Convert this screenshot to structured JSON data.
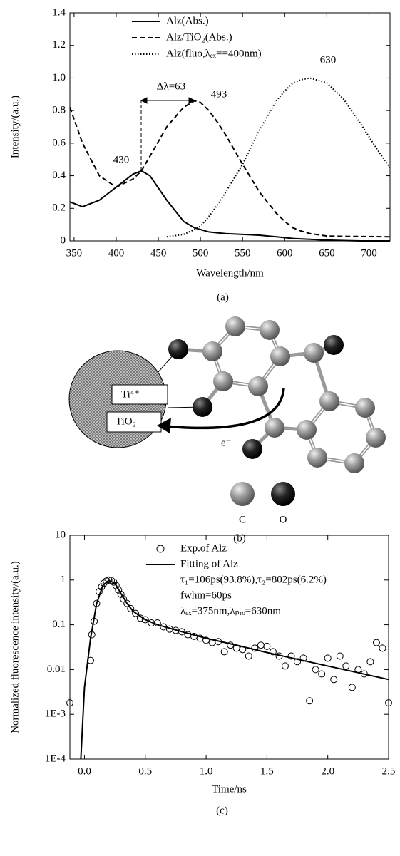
{
  "chart_data": [
    {
      "type": "line",
      "x_label": "Wavelength/nm",
      "y_label": "Intensity/(a.u.)",
      "caption": "(a)",
      "xlim": [
        345,
        725
      ],
      "ylim": [
        0,
        1.4
      ],
      "xticks": [
        350,
        400,
        450,
        500,
        550,
        600,
        650,
        700
      ],
      "yticks": [
        0,
        0.2,
        0.4,
        0.6,
        0.8,
        {
          "value": 1.0,
          "label": "1.0"
        },
        1.2,
        1.4
      ],
      "x": [
        345,
        360,
        380,
        400,
        420,
        430,
        440,
        460,
        480,
        493,
        500,
        510,
        520,
        530,
        550,
        570,
        590,
        600,
        610,
        620,
        630,
        650,
        670,
        690,
        700,
        710,
        725
      ],
      "series": [
        {
          "name": "Alz(Abs.)",
          "color": "#000",
          "style": "solid",
          "values": [
            0.24,
            0.21,
            0.25,
            0.33,
            0.41,
            0.43,
            0.4,
            0.25,
            0.12,
            0.08,
            0.07,
            0.055,
            0.05,
            0.045,
            0.04,
            0.035,
            0.025,
            0.02,
            0.015,
            0.012,
            0.01,
            0.005,
            0.002,
            0,
            0,
            0,
            0
          ]
        },
        {
          "name": "Alz/TiO₂(Abs.)",
          "color": "#000",
          "style": "dashed",
          "values": [
            0.82,
            0.6,
            0.4,
            0.33,
            0.38,
            0.43,
            0.52,
            0.7,
            0.82,
            0.86,
            0.85,
            0.8,
            0.73,
            0.65,
            0.47,
            0.3,
            0.17,
            0.12,
            0.08,
            0.06,
            0.045,
            0.03,
            0.028,
            0.027,
            0.027,
            0.026,
            0.025
          ]
        },
        {
          "name": "Alz(fluo,λₑₓ==400nm)",
          "color": "#000",
          "style": "dotted",
          "values": [
            null,
            null,
            null,
            null,
            null,
            null,
            null,
            0.025,
            0.04,
            0.07,
            0.09,
            0.15,
            0.22,
            0.3,
            0.47,
            0.68,
            0.86,
            0.92,
            0.97,
            0.99,
            1.0,
            0.97,
            0.87,
            0.72,
            0.64,
            0.56,
            0.45
          ]
        }
      ],
      "annotations": [
        "430",
        "493",
        "630",
        "Δλ=63"
      ]
    },
    {
      "type": "line",
      "x_label": "Time/ns",
      "y_label": "Normalized fluorescence intensity/(a.u.)",
      "caption": "(c)",
      "log_y": true,
      "xlim": [
        -0.12,
        2.5
      ],
      "ylim": [
        0.0001,
        10
      ],
      "xticks": [
        {
          "value": 0,
          "label": "0.0"
        },
        0.5,
        {
          "value": 1,
          "label": "1.0"
        },
        1.5,
        {
          "value": 2,
          "label": "2.0"
        },
        2.5
      ],
      "yticks": [
        10,
        1,
        0.1,
        0.01,
        {
          "value": 0.001,
          "label": "1E-3"
        },
        {
          "value": 0.0001,
          "label": "1E-4"
        }
      ],
      "series": [
        {
          "name": "Exp.of Alz",
          "color": "#000",
          "style": "markers",
          "x": [
            -0.12,
            0.05,
            0.06,
            0.08,
            0.1,
            0.12,
            0.14,
            0.16,
            0.18,
            0.2,
            0.22,
            0.24,
            0.26,
            0.28,
            0.3,
            0.32,
            0.35,
            0.38,
            0.42,
            0.46,
            0.5,
            0.55,
            0.6,
            0.65,
            0.7,
            0.75,
            0.8,
            0.85,
            0.9,
            0.95,
            1.0,
            1.05,
            1.1,
            1.15,
            1.2,
            1.25,
            1.3,
            1.35,
            1.4,
            1.45,
            1.5,
            1.55,
            1.6,
            1.65,
            1.7,
            1.75,
            1.8,
            1.85,
            1.9,
            1.95,
            2.0,
            2.05,
            2.1,
            2.15,
            2.2,
            2.25,
            2.3,
            2.35,
            2.4,
            2.45,
            2.5
          ],
          "values": [
            0.0018,
            0.016,
            0.06,
            0.12,
            0.3,
            0.55,
            0.7,
            0.85,
            0.95,
            1.0,
            0.98,
            0.9,
            0.75,
            0.6,
            0.48,
            0.38,
            0.3,
            0.23,
            0.18,
            0.14,
            0.13,
            0.11,
            0.11,
            0.09,
            0.08,
            0.075,
            0.07,
            0.06,
            0.055,
            0.05,
            0.045,
            0.04,
            0.042,
            0.025,
            0.035,
            0.03,
            0.028,
            0.02,
            0.03,
            0.035,
            0.033,
            0.025,
            0.02,
            0.012,
            0.02,
            0.015,
            0.018,
            0.002,
            0.01,
            0.008,
            0.018,
            0.006,
            0.02,
            0.012,
            0.004,
            0.01,
            0.008,
            0.015,
            0.04,
            0.03,
            0.0018
          ]
        },
        {
          "name": "Fitting of Alz",
          "color": "#000",
          "style": "solid",
          "x": [
            -0.03,
            0.0,
            0.05,
            0.1,
            0.15,
            0.2,
            0.25,
            0.3,
            0.35,
            0.4,
            0.5,
            0.6,
            0.8,
            1.0,
            1.25,
            1.5,
            1.75,
            2.0,
            2.25,
            2.5
          ],
          "values": [
            0.0001,
            0.004,
            0.05,
            0.3,
            0.75,
            0.98,
            0.85,
            0.5,
            0.3,
            0.2,
            0.13,
            0.1,
            0.07,
            0.05,
            0.035,
            0.024,
            0.017,
            0.012,
            0.0085,
            0.006
          ]
        }
      ],
      "notes": [
        "τ₁=106ps(93.8%),τ₂=802ps(6.2%)",
        "fwhm=60ps",
        "λₑₓ=375nm,λₚᵣₒ=630nm"
      ]
    }
  ],
  "diagram": {
    "metal_ion": "Ti⁴⁺",
    "support": "TiO₂",
    "electron": "e⁻",
    "legend": [
      "C",
      "O"
    ],
    "caption": "(b)"
  }
}
